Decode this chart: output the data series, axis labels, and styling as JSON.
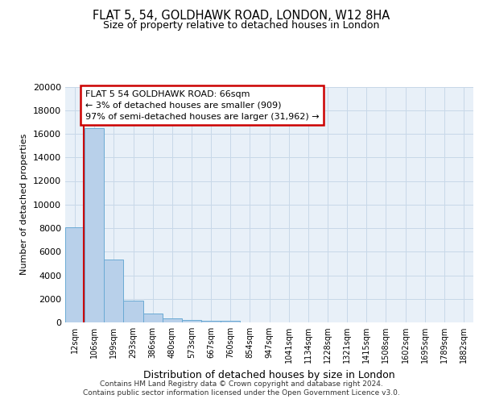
{
  "title": "FLAT 5, 54, GOLDHAWK ROAD, LONDON, W12 8HA",
  "subtitle": "Size of property relative to detached houses in London",
  "xlabel": "Distribution of detached houses by size in London",
  "ylabel": "Number of detached properties",
  "categories": [
    "12sqm",
    "106sqm",
    "199sqm",
    "293sqm",
    "386sqm",
    "480sqm",
    "573sqm",
    "667sqm",
    "760sqm",
    "854sqm",
    "947sqm",
    "1041sqm",
    "1134sqm",
    "1228sqm",
    "1321sqm",
    "1415sqm",
    "1508sqm",
    "1602sqm",
    "1695sqm",
    "1789sqm",
    "1882sqm"
  ],
  "values": [
    8100,
    16500,
    5300,
    1850,
    720,
    330,
    230,
    170,
    150,
    0,
    0,
    0,
    0,
    0,
    0,
    0,
    0,
    0,
    0,
    0,
    0
  ],
  "bar_color": "#b8d0ea",
  "bar_edge_color": "#6aaad4",
  "annotation_text": "FLAT 5 54 GOLDHAWK ROAD: 66sqm\n← 3% of detached houses are smaller (909)\n97% of semi-detached houses are larger (31,962) →",
  "annotation_box_color": "#ffffff",
  "annotation_box_edge_color": "#cc0000",
  "property_line_color": "#cc0000",
  "grid_color": "#c8d8e8",
  "background_color": "#e8f0f8",
  "ylim": [
    0,
    20000
  ],
  "yticks": [
    0,
    2000,
    4000,
    6000,
    8000,
    10000,
    12000,
    14000,
    16000,
    18000,
    20000
  ],
  "footer_line1": "Contains HM Land Registry data © Crown copyright and database right 2024.",
  "footer_line2": "Contains public sector information licensed under the Open Government Licence v3.0."
}
